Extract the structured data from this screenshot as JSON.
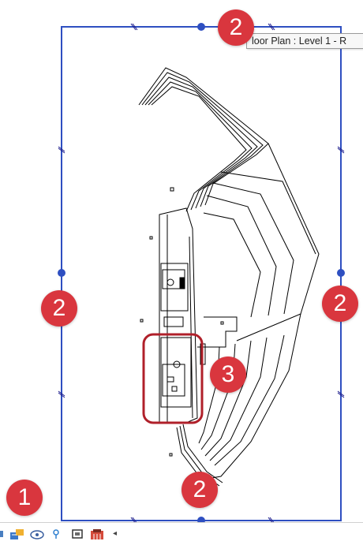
{
  "view": {
    "tooltip_text": "loor Plan : Level 1 - R",
    "crop_color": "#2e4fc1",
    "callout_color": "#d9363e",
    "highlight_color": "#b0202a"
  },
  "callouts": {
    "c1": "1",
    "c2_top": "2",
    "c2_left": "2",
    "c2_right": "2",
    "c2_bottom": "2",
    "c3": "3"
  },
  "toolbar": {
    "icons": [
      "detail-level-icon",
      "visual-style-icon",
      "sun-path-icon",
      "shadows-icon",
      "crop-view-icon",
      "show-crop-icon"
    ],
    "overflow_arrow": "◂"
  }
}
